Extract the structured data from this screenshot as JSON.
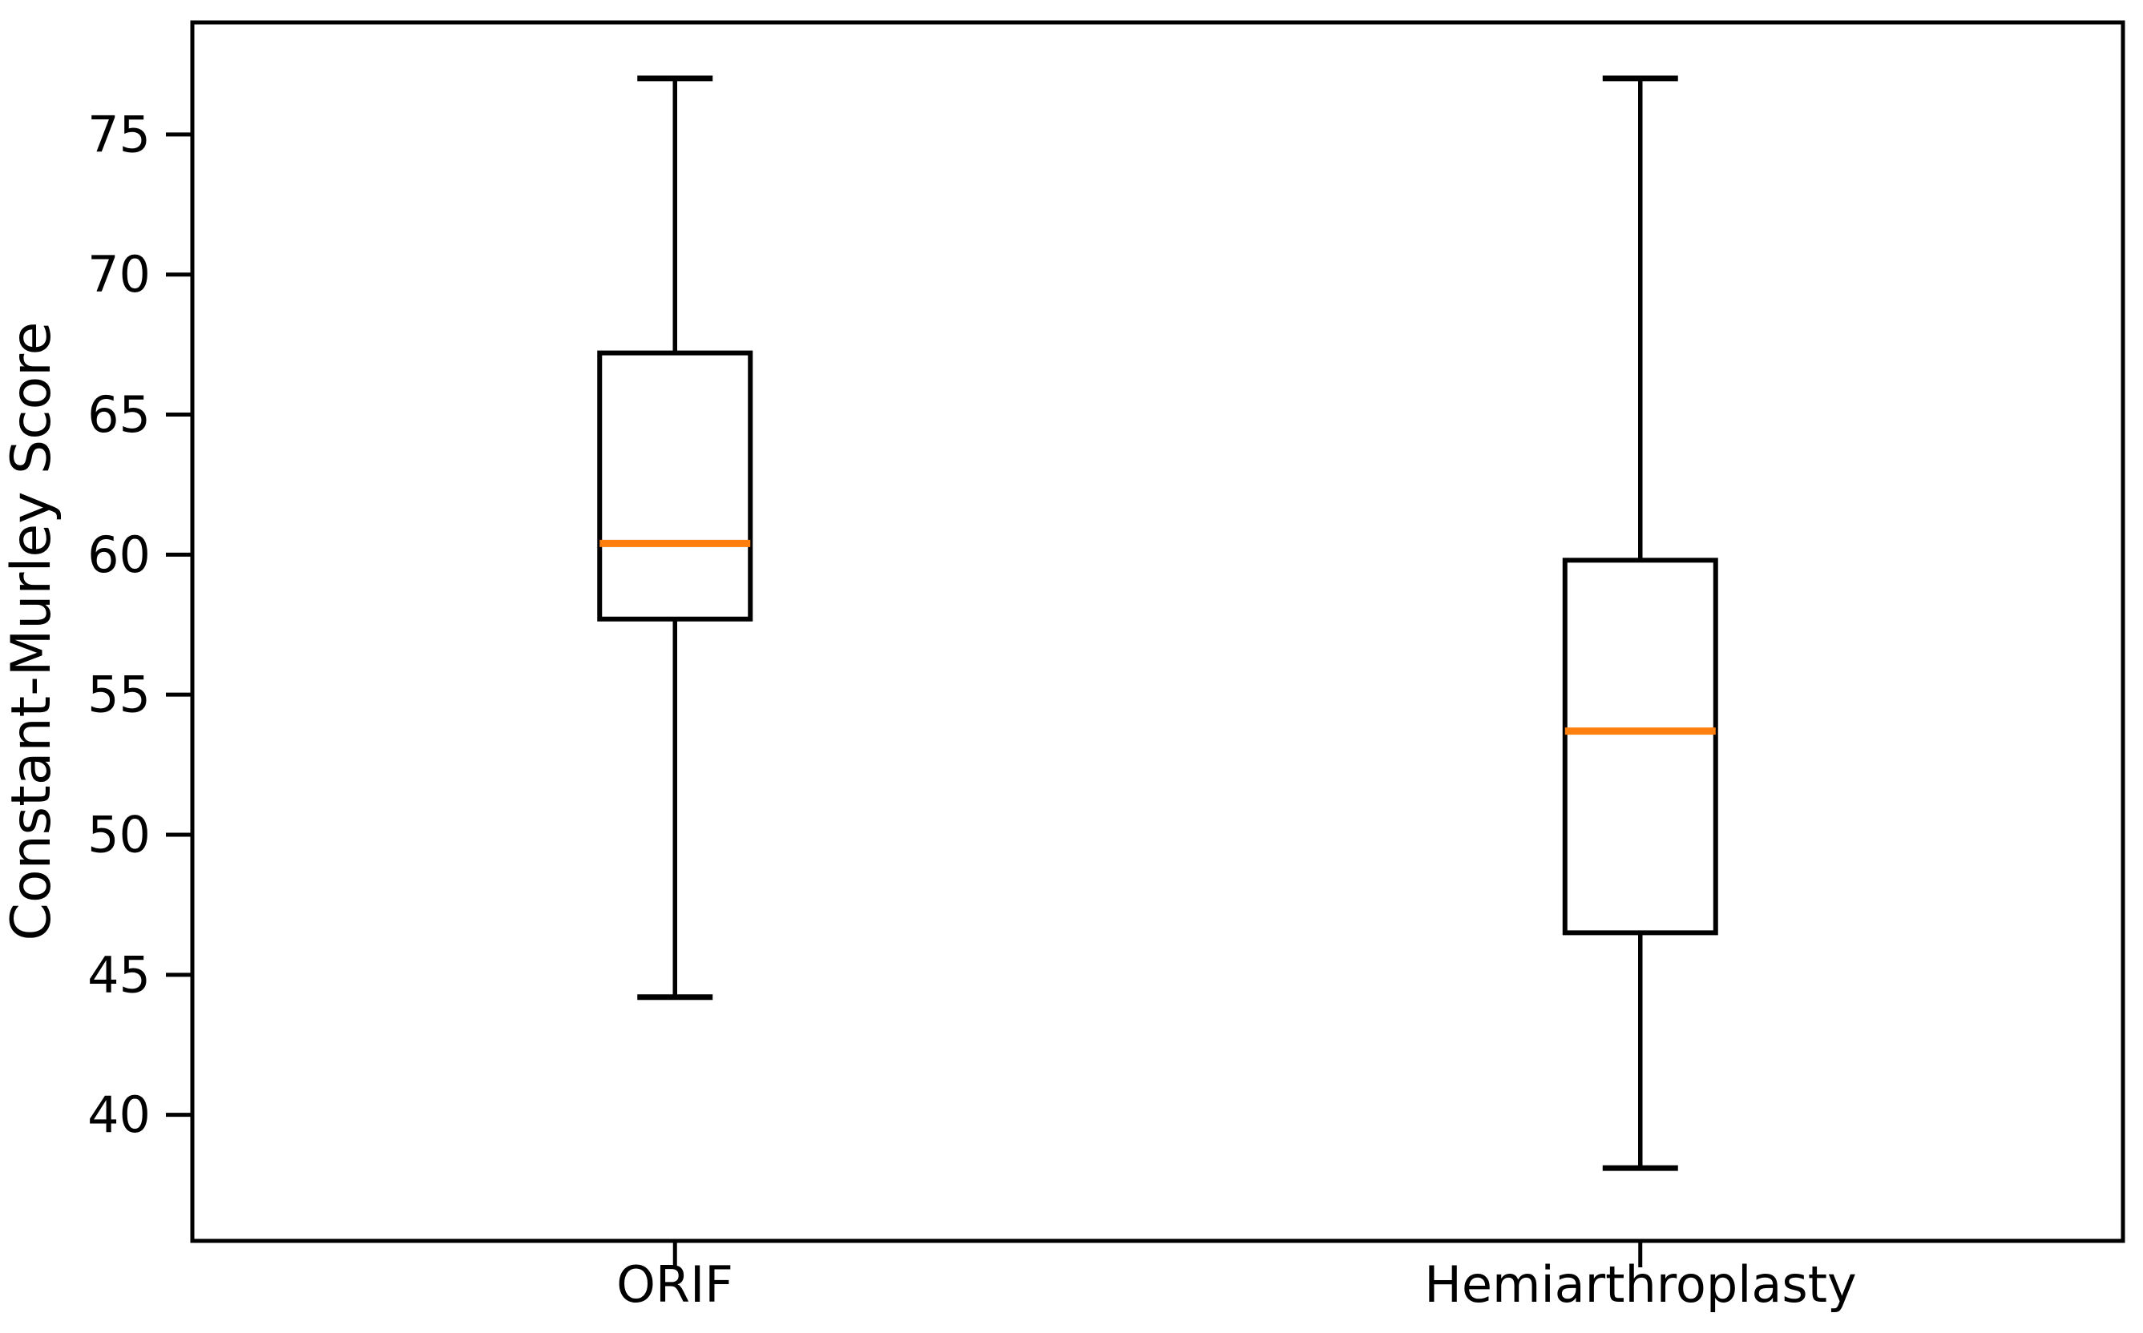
{
  "figure": {
    "background": "#ffffff"
  },
  "chart_data": {
    "type": "box",
    "title": "",
    "xlabel": "",
    "ylabel": "Constant-Murley Score",
    "categories": [
      "ORIF",
      "Hemiarthroplasty"
    ],
    "series": [
      {
        "name": "ORIF",
        "whisker_low": 44.2,
        "q1": 57.7,
        "median": 60.4,
        "q3": 67.2,
        "whisker_high": 77.0
      },
      {
        "name": "Hemiarthroplasty",
        "whisker_low": 38.1,
        "q1": 46.5,
        "median": 53.7,
        "q3": 59.8,
        "whisker_high": 77.0
      }
    ],
    "y_ticks": [
      40,
      45,
      50,
      55,
      60,
      65,
      70,
      75
    ],
    "ylim": [
      35.5,
      79.0
    ],
    "grid": false,
    "legend": "none",
    "colors": {
      "box_line": "#000000",
      "median_line": "#ff7f0e",
      "background": "#ffffff",
      "text": "#000000"
    }
  }
}
